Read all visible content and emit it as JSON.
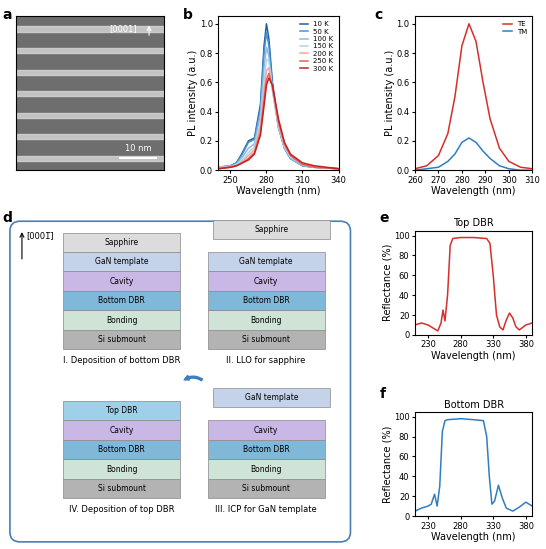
{
  "panel_labels": [
    "a",
    "b",
    "c",
    "d",
    "e",
    "f"
  ],
  "image_panel": {
    "axis_label": "[0001]",
    "scale_bar": "10 nm"
  },
  "diagram": {
    "direction_label": "[0001̅]",
    "steps": [
      {
        "label": "I. Deposition of bottom DBR",
        "layers": [
          {
            "name": "Si submount",
            "color": "#b3b3b3"
          },
          {
            "name": "Bonding",
            "color": "#cfe3d6"
          },
          {
            "name": "Bottom DBR",
            "color": "#7fb8d9"
          },
          {
            "name": "Cavity",
            "color": "#c9b8e6"
          },
          {
            "name": "GaN template",
            "color": "#c5d3ea"
          },
          {
            "name": "Sapphire",
            "color": "#dcdcdc"
          }
        ]
      },
      {
        "label": "II. LLO for sapphire",
        "layers": [
          {
            "name": "Si submount",
            "color": "#b3b3b3"
          },
          {
            "name": "Bonding",
            "color": "#cfe3d6"
          },
          {
            "name": "Bottom DBR",
            "color": "#7fb8d9"
          },
          {
            "name": "Cavity",
            "color": "#c9b8e6"
          },
          {
            "name": "GaN template",
            "color": "#c5d3ea"
          }
        ],
        "lifted_layer": {
          "name": "Sapphire",
          "color": "#dcdcdc"
        }
      },
      {
        "label": "III. ICP for GaN template",
        "layers": [
          {
            "name": "Si submount",
            "color": "#b3b3b3"
          },
          {
            "name": "Bonding",
            "color": "#cfe3d6"
          },
          {
            "name": "Bottom DBR",
            "color": "#7fb8d9"
          },
          {
            "name": "Cavity",
            "color": "#c9b8e6"
          }
        ],
        "lifted_layer": {
          "name": "GaN template",
          "color": "#c5d3ea"
        }
      },
      {
        "label": "IV. Deposition of top DBR",
        "layers": [
          {
            "name": "Si submount",
            "color": "#b3b3b3"
          },
          {
            "name": "Bonding",
            "color": "#cfe3d6"
          },
          {
            "name": "Bottom DBR",
            "color": "#7fb8d9"
          },
          {
            "name": "Cavity",
            "color": "#c9b8e6"
          },
          {
            "name": "Top DBR",
            "color": "#9fd0ea"
          }
        ]
      }
    ]
  },
  "chart_data": [
    {
      "type": "line",
      "xlabel": "Wavelength (nm)",
      "ylabel": "PL intensity (a.u.)",
      "x": [
        240,
        250,
        255,
        260,
        265,
        270,
        275,
        278,
        280,
        282,
        285,
        290,
        295,
        300,
        310,
        320,
        340
      ],
      "series": [
        {
          "name": "10 K",
          "color": "#1f5fa8",
          "values": [
            0.02,
            0.03,
            0.05,
            0.12,
            0.2,
            0.22,
            0.45,
            0.85,
            1.0,
            0.9,
            0.6,
            0.3,
            0.15,
            0.08,
            0.03,
            0.02,
            0.01
          ]
        },
        {
          "name": "50 K",
          "color": "#4a93cf",
          "values": [
            0.02,
            0.03,
            0.05,
            0.11,
            0.19,
            0.21,
            0.42,
            0.8,
            0.94,
            0.85,
            0.57,
            0.29,
            0.15,
            0.08,
            0.03,
            0.02,
            0.01
          ]
        },
        {
          "name": "100 K",
          "color": "#86bde3",
          "values": [
            0.02,
            0.03,
            0.04,
            0.09,
            0.15,
            0.18,
            0.38,
            0.7,
            0.84,
            0.78,
            0.55,
            0.29,
            0.15,
            0.08,
            0.03,
            0.02,
            0.01
          ]
        },
        {
          "name": "150 K",
          "color": "#b5d6ec",
          "values": [
            0.02,
            0.02,
            0.04,
            0.07,
            0.12,
            0.16,
            0.33,
            0.6,
            0.76,
            0.74,
            0.55,
            0.3,
            0.16,
            0.09,
            0.04,
            0.02,
            0.01
          ]
        },
        {
          "name": "200 K",
          "color": "#f2a7a2",
          "values": [
            0.02,
            0.02,
            0.03,
            0.06,
            0.1,
            0.14,
            0.3,
            0.54,
            0.68,
            0.7,
            0.56,
            0.31,
            0.17,
            0.1,
            0.04,
            0.02,
            0.01
          ]
        },
        {
          "name": "250 K",
          "color": "#e2625a",
          "values": [
            0.01,
            0.02,
            0.03,
            0.05,
            0.08,
            0.12,
            0.26,
            0.48,
            0.62,
            0.66,
            0.57,
            0.33,
            0.18,
            0.1,
            0.04,
            0.02,
            0.01
          ]
        },
        {
          "name": "300 K",
          "color": "#c8201e",
          "values": [
            0.01,
            0.02,
            0.03,
            0.05,
            0.07,
            0.11,
            0.24,
            0.44,
            0.58,
            0.63,
            0.58,
            0.35,
            0.19,
            0.11,
            0.05,
            0.03,
            0.01
          ]
        }
      ],
      "xlim": [
        240,
        340
      ],
      "xticks": [
        250,
        280,
        310,
        340
      ],
      "ylim": [
        0,
        1.05
      ],
      "yticks": [
        {
          "value": 0,
          "label": "0.0"
        },
        {
          "value": 0.2,
          "label": "0.2"
        },
        {
          "value": 0.4,
          "label": "0.4"
        },
        {
          "value": 0.6,
          "label": "0.6"
        },
        {
          "value": 0.8,
          "label": "0.8"
        },
        {
          "value": 1,
          "label": "1.0"
        }
      ],
      "legend": "upper right"
    },
    {
      "type": "line",
      "xlabel": "Wavelength (nm)",
      "ylabel": "PL intensity (a.u.)",
      "x": [
        260,
        265,
        270,
        274,
        277,
        280,
        283,
        286,
        289,
        292,
        296,
        300,
        305,
        310
      ],
      "series": [
        {
          "name": "TE",
          "color": "#d62f2a",
          "values": [
            0.01,
            0.03,
            0.1,
            0.25,
            0.5,
            0.85,
            1.0,
            0.88,
            0.6,
            0.35,
            0.15,
            0.06,
            0.02,
            0.01
          ]
        },
        {
          "name": "TM",
          "color": "#2f7fc0",
          "values": [
            0.0,
            0.01,
            0.02,
            0.06,
            0.11,
            0.19,
            0.22,
            0.19,
            0.13,
            0.08,
            0.03,
            0.01,
            0.0,
            0.0
          ]
        }
      ],
      "xlim": [
        260,
        310
      ],
      "xticks": [
        260,
        270,
        280,
        290,
        300,
        310
      ],
      "ylim": [
        0,
        1.05
      ],
      "yticks": [
        {
          "value": 0,
          "label": "0.0"
        },
        {
          "value": 0.2,
          "label": "0.2"
        },
        {
          "value": 0.4,
          "label": "0.4"
        },
        {
          "value": 0.6,
          "label": "0.6"
        },
        {
          "value": 0.8,
          "label": "0.8"
        },
        {
          "value": 1,
          "label": "1.0"
        }
      ],
      "legend": "upper right"
    },
    {
      "type": "line",
      "title": "Top DBR",
      "xlabel": "Wavelength (nm)",
      "ylabel": "Reflectance (%)",
      "color": "#d62f2a",
      "x": [
        210,
        220,
        230,
        240,
        245,
        250,
        253,
        256,
        260,
        264,
        268,
        280,
        300,
        320,
        325,
        330,
        335,
        340,
        345,
        350,
        355,
        360,
        365,
        370,
        380,
        390
      ],
      "values": [
        10,
        12,
        10,
        6,
        4,
        12,
        25,
        14,
        40,
        90,
        97,
        98,
        98,
        97,
        92,
        60,
        20,
        8,
        5,
        15,
        22,
        17,
        8,
        5,
        10,
        12
      ],
      "xlim": [
        210,
        390
      ],
      "xticks": [
        230,
        280,
        330,
        380
      ],
      "ylim": [
        0,
        105
      ],
      "yticks": [
        0,
        20,
        40,
        60,
        80,
        100
      ]
    },
    {
      "type": "line",
      "title": "Bottom DBR",
      "xlabel": "Wavelength (nm)",
      "ylabel": "Reflectance (%)",
      "color": "#2f7fc0",
      "x": [
        210,
        220,
        230,
        235,
        240,
        244,
        248,
        252,
        256,
        260,
        280,
        300,
        315,
        320,
        324,
        328,
        332,
        338,
        344,
        350,
        360,
        370,
        380,
        390
      ],
      "values": [
        5,
        8,
        10,
        12,
        22,
        10,
        30,
        85,
        96,
        97,
        98,
        97,
        96,
        80,
        40,
        12,
        15,
        31,
        18,
        8,
        5,
        9,
        14,
        10
      ],
      "xlim": [
        210,
        390
      ],
      "xticks": [
        230,
        280,
        330,
        380
      ],
      "ylim": [
        0,
        105
      ],
      "yticks": [
        0,
        20,
        40,
        60,
        80,
        100
      ]
    }
  ]
}
